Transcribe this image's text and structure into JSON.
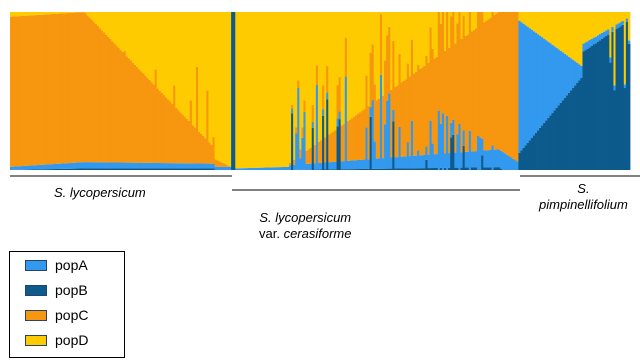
{
  "chart_data": {
    "type": "bar",
    "stacked": true,
    "normalized": true,
    "ylim": [
      0,
      1
    ],
    "grid": false,
    "legend_position": "bottom-left",
    "series": [
      {
        "name": "popA",
        "color": "#3399ee"
      },
      {
        "name": "popB",
        "color": "#0d5a8c"
      },
      {
        "name": "popC",
        "color": "#f7960f"
      },
      {
        "name": "popD",
        "color": "#fecb00"
      }
    ],
    "groups": [
      {
        "label": "S. lycopersicum",
        "italic": "S. lycopersicum",
        "plain": "",
        "start": 0,
        "end": 0.35
      },
      {
        "label": "S. lycopersicum var. cerasiforme",
        "italic": "S. lycopersicum",
        "plain": "var. ",
        "italic2": "cerasiforme",
        "start": 0.35,
        "end": 0.82
      },
      {
        "label": "S. pimpinellifolium",
        "italic": "S.",
        "italic2": "pimpinellifolium",
        "start": 0.82,
        "end": 1.0
      }
    ],
    "segments": [
      {
        "start": 0.0,
        "end": 0.12,
        "C_from": 0.95,
        "C_to": 0.95,
        "A_from": 0.02,
        "A_to": 0.04,
        "B_from": 0.0,
        "B_to": 0.01
      },
      {
        "start": 0.12,
        "end": 0.33,
        "C_from": 0.95,
        "C_to": 0.1,
        "A_from": 0.04,
        "A_to": 0.03,
        "B_from": 0.01,
        "B_to": 0.01
      },
      {
        "start": 0.33,
        "end": 0.356,
        "C_from": 0.05,
        "C_to": 0.0,
        "A_from": 0.02,
        "A_to": 0.02,
        "B_from": 0.0,
        "B_to": 0.0
      },
      {
        "start": 0.356,
        "end": 0.364,
        "C_from": 0.0,
        "C_to": 0.0,
        "A_from": 0.0,
        "A_to": 0.0,
        "B_from": 1.0,
        "B_to": 1.0
      },
      {
        "start": 0.364,
        "end": 0.45,
        "C_from": 0.0,
        "C_to": 0.0,
        "A_from": 0.01,
        "A_to": 0.02,
        "B_from": 0.0,
        "B_to": 0.0
      },
      {
        "start": 0.45,
        "end": 0.82,
        "C_from": 0.01,
        "C_to": 0.95,
        "A_from": 0.03,
        "A_to": 0.12,
        "B_from": 0.0,
        "B_to": 0.02
      },
      {
        "start": 0.82,
        "end": 0.925,
        "C_from": 0.0,
        "C_to": 0.0,
        "A_from": 0.85,
        "A_to": 0.05,
        "B_from": 0.1,
        "B_to": 0.6
      },
      {
        "start": 0.925,
        "end": 1.0,
        "C_from": 0.0,
        "C_to": 0.0,
        "A_from": 0.05,
        "A_to": 0.02,
        "B_from": 0.75,
        "B_to": 0.95
      }
    ],
    "bar_count": 300
  }
}
